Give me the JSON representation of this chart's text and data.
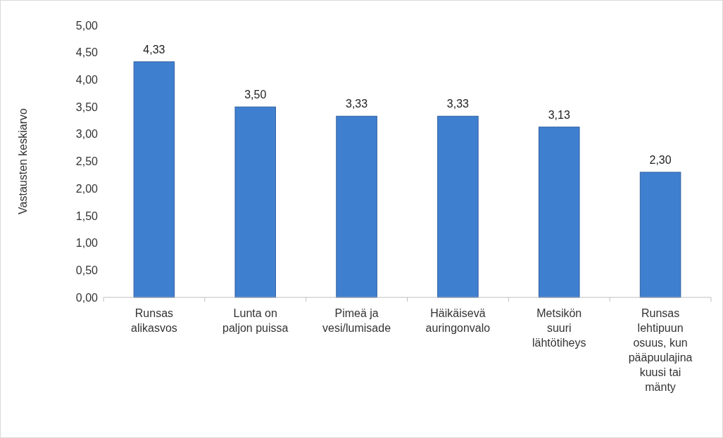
{
  "chart_data": {
    "type": "bar",
    "ylabel": "Vastausten keskiarvo",
    "categories": [
      "Runsas alikasvos",
      "Lunta on paljon puissa",
      "Pimeä ja vesi/lumisade",
      "Häikäisevä auringonvalo",
      "Metsikön suuri lähtötiheys",
      "Runsas lehtipuun osuus, kun pääpuulajina kuusi tai mänty"
    ],
    "values": [
      4.33,
      3.5,
      3.33,
      3.33,
      3.13,
      2.3
    ],
    "value_labels": [
      "4,33",
      "3,50",
      "3,33",
      "3,33",
      "3,13",
      "2,30"
    ],
    "color": "#3f7fd0",
    "ylim": [
      0,
      5
    ],
    "yticks": [
      {
        "value": 0,
        "label": "0,00"
      },
      {
        "value": 0.5,
        "label": "0,50"
      },
      {
        "value": 1,
        "label": "1,00"
      },
      {
        "value": 1.5,
        "label": "1,50"
      },
      {
        "value": 2,
        "label": "2,00"
      },
      {
        "value": 2.5,
        "label": "2,50"
      },
      {
        "value": 3,
        "label": "3,00"
      },
      {
        "value": 3.5,
        "label": "3,50"
      },
      {
        "value": 4,
        "label": "4,00"
      },
      {
        "value": 4.5,
        "label": "4,50"
      },
      {
        "value": 5,
        "label": "5,00"
      }
    ],
    "grid": false
  }
}
